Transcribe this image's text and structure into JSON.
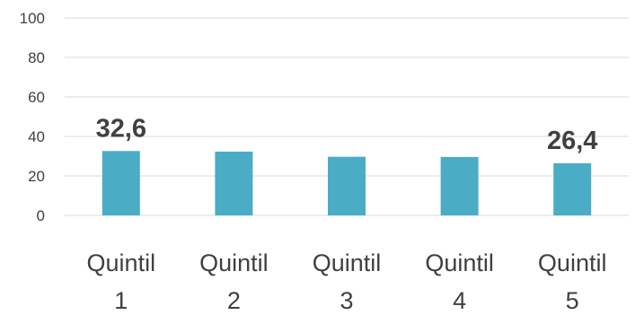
{
  "chart_data": {
    "type": "bar",
    "title": "",
    "xlabel": "",
    "ylabel": "",
    "categories": [
      [
        "Quintil",
        "1"
      ],
      [
        "Quintil",
        "2"
      ],
      [
        "Quintil",
        "3"
      ],
      [
        "Quintil",
        "4"
      ],
      [
        "Quintil",
        "5"
      ]
    ],
    "values": [
      32.6,
      32.3,
      29.7,
      29.6,
      26.4
    ],
    "data_labels": [
      "32,6",
      "",
      "",
      "",
      "26,4"
    ],
    "ylim": [
      0,
      100
    ],
    "yticks": [
      0,
      20,
      40,
      60,
      80,
      100
    ],
    "ytick_labels": [
      "0",
      "20",
      "40",
      "60",
      "80",
      "100"
    ],
    "grid": true,
    "legend": "none",
    "bar_color": "#4bacc6",
    "gridline_color": "#d9d9d9",
    "text_color": "#404040"
  }
}
